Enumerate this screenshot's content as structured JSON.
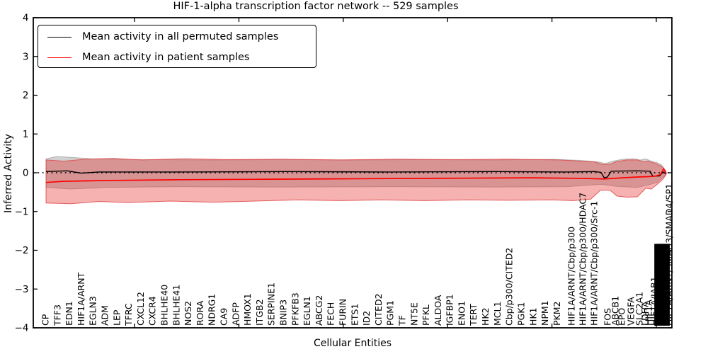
{
  "title": "HIF-1-alpha transcription factor network -- 529 samples",
  "legend": {
    "items": [
      {
        "label": "Mean activity in all permuted samples",
        "color": "#000000"
      },
      {
        "label": "Mean activity in patient samples",
        "color": "#ff0000"
      }
    ]
  },
  "axes": {
    "ylabel": "Inferred Activity",
    "xlabel": "Cellular Entities",
    "ylim": [
      -4,
      4
    ],
    "ytick_labels": [
      "4",
      "3",
      "2",
      "1",
      "0",
      "−1",
      "−2",
      "−3",
      "−4"
    ],
    "grid": "off",
    "zero_reference_line": 0
  },
  "chart_data": {
    "type": "line",
    "title": "HIF-1-alpha transcription factor network -- 529 samples",
    "xlabel": "Cellular Entities",
    "ylabel": "Inferred Activity",
    "ylim": [
      -4,
      4
    ],
    "legend_position": "upper left",
    "note_xf": "xf = fractional position across plot area; labels near right edge overlap heavily in source image; block glyphs reproduce the unreadable overlapped label smear",
    "categories": [
      {
        "label": "CP",
        "xf": 0.0188
      },
      {
        "label": "TFF3",
        "xf": 0.0375
      },
      {
        "label": "EDN1",
        "xf": 0.0561
      },
      {
        "label": "HIF1A/ARNT",
        "xf": 0.0747
      },
      {
        "label": "EGLN3",
        "xf": 0.0933
      },
      {
        "label": "ADM",
        "xf": 0.112
      },
      {
        "label": "LEP",
        "xf": 0.1306
      },
      {
        "label": "TFRC",
        "xf": 0.1492
      },
      {
        "label": "CXCL12",
        "xf": 0.1678
      },
      {
        "label": "CXCR4",
        "xf": 0.1865
      },
      {
        "label": "BHLHE40",
        "xf": 0.2051
      },
      {
        "label": "BHLHE41",
        "xf": 0.2237
      },
      {
        "label": "NOS2",
        "xf": 0.2423
      },
      {
        "label": "RORA",
        "xf": 0.261
      },
      {
        "label": "NDRG1",
        "xf": 0.2796
      },
      {
        "label": "CA9",
        "xf": 0.2982
      },
      {
        "label": "ADFP",
        "xf": 0.3168
      },
      {
        "label": "HMOX1",
        "xf": 0.3355
      },
      {
        "label": "ITGB2",
        "xf": 0.3541
      },
      {
        "label": "SERPINE1",
        "xf": 0.3727
      },
      {
        "label": "BNIP3",
        "xf": 0.3913
      },
      {
        "label": "PFKFB3",
        "xf": 0.41
      },
      {
        "label": "EGLN1",
        "xf": 0.4286
      },
      {
        "label": "ABCG2",
        "xf": 0.4472
      },
      {
        "label": "FECH",
        "xf": 0.4658
      },
      {
        "label": "FURIN",
        "xf": 0.4845
      },
      {
        "label": "ETS1",
        "xf": 0.5031
      },
      {
        "label": "ID2",
        "xf": 0.5217
      },
      {
        "label": "CITED2",
        "xf": 0.5403
      },
      {
        "label": "PGM1",
        "xf": 0.559
      },
      {
        "label": "TF",
        "xf": 0.5776
      },
      {
        "label": "NT5E",
        "xf": 0.5962
      },
      {
        "label": "PFKL",
        "xf": 0.6148
      },
      {
        "label": "ALDOA",
        "xf": 0.6335
      },
      {
        "label": "IGFBP1",
        "xf": 0.6521
      },
      {
        "label": "ENO1",
        "xf": 0.6707
      },
      {
        "label": "TERT",
        "xf": 0.6893
      },
      {
        "label": "HK2",
        "xf": 0.708
      },
      {
        "label": "MCL1",
        "xf": 0.7266
      },
      {
        "label": "Cbp/p300/CITED2",
        "xf": 0.7452
      },
      {
        "label": "PGK1",
        "xf": 0.7638
      },
      {
        "label": "HK1",
        "xf": 0.7825
      },
      {
        "label": "NPM1",
        "xf": 0.8011
      },
      {
        "label": "PKM2",
        "xf": 0.8197
      },
      {
        "label": "HIF1A/ARNT/Cbp/p300",
        "xf": 0.8426
      },
      {
        "label": "HIF1A/ARNT/Cbp/p300/HDAC7",
        "xf": 0.8603
      },
      {
        "label": "HIF1A/ARNT/Cbp/p300/Src-1",
        "xf": 0.878
      },
      {
        "label": "FOS",
        "xf": 0.8991
      },
      {
        "label": "ABCB1",
        "xf": 0.9113
      },
      {
        "label": "EPO",
        "xf": 0.9213
      },
      {
        "label": "VEGFA",
        "xf": 0.9357
      },
      {
        "label": "SLC2A1",
        "xf": 0.949
      },
      {
        "label": "LDHA",
        "xf": 0.9579
      },
      {
        "label": "HIF1A",
        "xf": 0.9634
      },
      {
        "label": "HIF1A/JAB1",
        "xf": 0.9723
      },
      {
        "label": "████████████",
        "xf": 0.9806
      },
      {
        "label": "████████████",
        "xf": 0.9845
      },
      {
        "label": "████████████",
        "xf": 0.9884
      },
      {
        "label": "HIF1A/ARNT/SMAD3/SMAD4/SP1",
        "xf": 0.9956
      }
    ],
    "series": [
      {
        "name": "Mean activity in all permuted samples",
        "color": "#000000",
        "width": 1.4,
        "points": [
          [
            0.02,
            0.03
          ],
          [
            0.053,
            0.05
          ],
          [
            0.075,
            -0.01
          ],
          [
            0.103,
            0.02
          ],
          [
            0.225,
            0.02
          ],
          [
            0.391,
            0.03
          ],
          [
            0.558,
            0.02
          ],
          [
            0.724,
            0.03
          ],
          [
            0.835,
            0.02
          ],
          [
            0.879,
            0.03
          ],
          [
            0.889,
            0.01
          ],
          [
            0.894,
            -0.13
          ],
          [
            0.899,
            -0.11
          ],
          [
            0.905,
            0.04
          ],
          [
            0.946,
            0.05
          ],
          [
            0.966,
            0.04
          ],
          [
            0.97,
            -0.09
          ],
          [
            0.981,
            -0.08
          ],
          [
            0.986,
            0.02
          ],
          [
            0.991,
            -0.03
          ]
        ]
      },
      {
        "name": "Mean activity in patient samples",
        "color": "#ff0000",
        "width": 1.7,
        "points": [
          [
            0.02,
            -0.25
          ],
          [
            0.048,
            -0.22
          ],
          [
            0.114,
            -0.2
          ],
          [
            0.225,
            -0.18
          ],
          [
            0.336,
            -0.17
          ],
          [
            0.447,
            -0.16
          ],
          [
            0.558,
            -0.15
          ],
          [
            0.669,
            -0.14
          ],
          [
            0.779,
            -0.13
          ],
          [
            0.835,
            -0.14
          ],
          [
            0.868,
            -0.15
          ],
          [
            0.894,
            -0.16
          ],
          [
            0.923,
            -0.13
          ],
          [
            0.946,
            -0.11
          ],
          [
            0.962,
            -0.1
          ],
          [
            0.973,
            -0.09
          ],
          [
            0.982,
            -0.05
          ],
          [
            0.987,
            0.1
          ],
          [
            0.991,
            -0.02
          ]
        ]
      }
    ],
    "bands": [
      {
        "name": "permuted-samples-band",
        "fill": "rgba(0,0,0,0.18)",
        "edge": "rgba(0,0,0,0.22)",
        "top": [
          [
            0.02,
            0.36
          ],
          [
            0.037,
            0.42
          ],
          [
            0.059,
            0.4
          ],
          [
            0.092,
            0.36
          ],
          [
            0.17,
            0.34
          ],
          [
            0.281,
            0.33
          ],
          [
            0.391,
            0.34
          ],
          [
            0.502,
            0.33
          ],
          [
            0.613,
            0.34
          ],
          [
            0.724,
            0.33
          ],
          [
            0.813,
            0.35
          ],
          [
            0.857,
            0.32
          ],
          [
            0.885,
            0.28
          ],
          [
            0.896,
            0.24
          ],
          [
            0.907,
            0.3
          ],
          [
            0.923,
            0.35
          ],
          [
            0.94,
            0.36
          ],
          [
            0.951,
            0.33
          ],
          [
            0.959,
            0.36
          ],
          [
            0.968,
            0.3
          ],
          [
            0.977,
            0.26
          ],
          [
            0.984,
            0.2
          ],
          [
            0.991,
            0.04
          ]
        ],
        "bottom": [
          [
            0.02,
            -0.38
          ],
          [
            0.059,
            -0.42
          ],
          [
            0.114,
            -0.38
          ],
          [
            0.225,
            -0.36
          ],
          [
            0.391,
            -0.37
          ],
          [
            0.558,
            -0.36
          ],
          [
            0.724,
            -0.37
          ],
          [
            0.835,
            -0.36
          ],
          [
            0.89,
            -0.3
          ],
          [
            0.912,
            -0.35
          ],
          [
            0.946,
            -0.38
          ],
          [
            0.962,
            -0.32
          ],
          [
            0.977,
            -0.25
          ],
          [
            0.984,
            -0.15
          ],
          [
            0.991,
            -0.04
          ]
        ]
      },
      {
        "name": "patient-samples-band",
        "fill": "rgba(230,40,40,0.36)",
        "edge": "rgba(225,70,70,0.85)",
        "top": [
          [
            0.02,
            0.33
          ],
          [
            0.048,
            0.3
          ],
          [
            0.081,
            0.35
          ],
          [
            0.125,
            0.37
          ],
          [
            0.17,
            0.33
          ],
          [
            0.236,
            0.36
          ],
          [
            0.303,
            0.34
          ],
          [
            0.391,
            0.35
          ],
          [
            0.48,
            0.33
          ],
          [
            0.569,
            0.35
          ],
          [
            0.658,
            0.34
          ],
          [
            0.746,
            0.35
          ],
          [
            0.824,
            0.33
          ],
          [
            0.857,
            0.3
          ],
          [
            0.879,
            0.28
          ],
          [
            0.89,
            0.22
          ],
          [
            0.903,
            0.22
          ],
          [
            0.912,
            0.28
          ],
          [
            0.929,
            0.33
          ],
          [
            0.946,
            0.33
          ],
          [
            0.957,
            0.28
          ],
          [
            0.962,
            0.3
          ],
          [
            0.973,
            0.25
          ],
          [
            0.982,
            0.18
          ],
          [
            0.987,
            0.12
          ],
          [
            0.991,
            0.02
          ]
        ],
        "bottom": [
          [
            0.02,
            -0.78
          ],
          [
            0.059,
            -0.8
          ],
          [
            0.103,
            -0.74
          ],
          [
            0.147,
            -0.77
          ],
          [
            0.214,
            -0.73
          ],
          [
            0.281,
            -0.76
          ],
          [
            0.347,
            -0.73
          ],
          [
            0.414,
            -0.7
          ],
          [
            0.48,
            -0.72
          ],
          [
            0.547,
            -0.7
          ],
          [
            0.613,
            -0.72
          ],
          [
            0.68,
            -0.7
          ],
          [
            0.746,
            -0.71
          ],
          [
            0.813,
            -0.7
          ],
          [
            0.846,
            -0.72
          ],
          [
            0.873,
            -0.68
          ],
          [
            0.888,
            -0.45
          ],
          [
            0.903,
            -0.45
          ],
          [
            0.914,
            -0.6
          ],
          [
            0.929,
            -0.63
          ],
          [
            0.946,
            -0.62
          ],
          [
            0.959,
            -0.4
          ],
          [
            0.968,
            -0.42
          ],
          [
            0.977,
            -0.3
          ],
          [
            0.984,
            -0.2
          ],
          [
            0.991,
            -0.05
          ]
        ]
      }
    ],
    "xticks_xf": [
      0.1585,
      0.322,
      0.4854,
      0.6488,
      0.8122,
      0.9756
    ]
  }
}
